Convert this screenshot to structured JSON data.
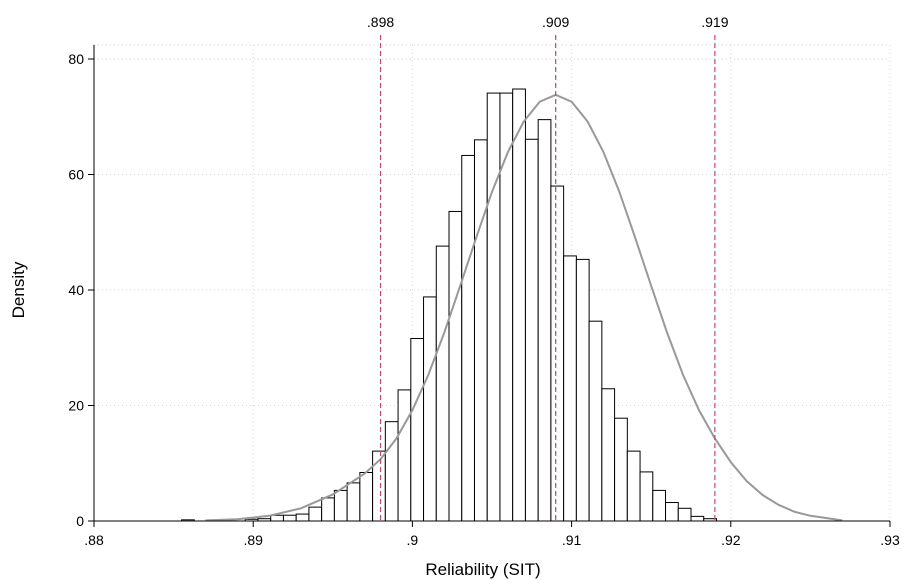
{
  "chart_data": {
    "type": "bar",
    "subtype": "histogram with kernel density overlay",
    "xlabel": "Reliability (SIT)",
    "ylabel": "Density",
    "xlim": [
      0.88,
      0.93
    ],
    "ylim": [
      0,
      80
    ],
    "xticks": [
      0.88,
      0.89,
      0.9,
      0.91,
      0.92,
      0.93
    ],
    "xtick_labels": [
      ".88",
      ".89",
      ".9",
      ".91",
      ".92",
      ".93"
    ],
    "yticks": [
      0,
      20,
      40,
      60,
      80
    ],
    "ytick_labels": [
      "0",
      "20",
      "40",
      "60",
      "80"
    ],
    "grid": true,
    "bin_width": 0.0008,
    "bins": [
      {
        "start": 0.8855,
        "end": 0.8863,
        "density": 0.2
      },
      {
        "start": 0.8895,
        "end": 0.8903,
        "density": 0.3
      },
      {
        "start": 0.8903,
        "end": 0.8911,
        "density": 0.4
      },
      {
        "start": 0.8911,
        "end": 0.8919,
        "density": 1.0
      },
      {
        "start": 0.8919,
        "end": 0.8927,
        "density": 1.0
      },
      {
        "start": 0.8927,
        "end": 0.8935,
        "density": 1.2
      },
      {
        "start": 0.8935,
        "end": 0.8943,
        "density": 2.4
      },
      {
        "start": 0.8943,
        "end": 0.8951,
        "density": 4.0
      },
      {
        "start": 0.8951,
        "end": 0.8959,
        "density": 5.3
      },
      {
        "start": 0.8959,
        "end": 0.8967,
        "density": 6.6
      },
      {
        "start": 0.8967,
        "end": 0.8975,
        "density": 8.4
      },
      {
        "start": 0.8975,
        "end": 0.8983,
        "density": 12.1
      },
      {
        "start": 0.8983,
        "end": 0.8991,
        "density": 17.2
      },
      {
        "start": 0.8991,
        "end": 0.8999,
        "density": 22.7
      },
      {
        "start": 0.8999,
        "end": 0.9007,
        "density": 31.6
      },
      {
        "start": 0.9007,
        "end": 0.9015,
        "density": 38.8
      },
      {
        "start": 0.9015,
        "end": 0.9023,
        "density": 47.6
      },
      {
        "start": 0.9023,
        "end": 0.9031,
        "density": 53.6
      },
      {
        "start": 0.9031,
        "end": 0.9039,
        "density": 63.3
      },
      {
        "start": 0.9039,
        "end": 0.9047,
        "density": 66.0
      },
      {
        "start": 0.9047,
        "end": 0.9055,
        "density": 74.1
      },
      {
        "start": 0.9055,
        "end": 0.9063,
        "density": 74.1
      },
      {
        "start": 0.9063,
        "end": 0.9071,
        "density": 74.8
      },
      {
        "start": 0.9071,
        "end": 0.9079,
        "density": 66.1
      },
      {
        "start": 0.9079,
        "end": 0.9087,
        "density": 69.5
      },
      {
        "start": 0.9087,
        "end": 0.9095,
        "density": 58.0
      },
      {
        "start": 0.9095,
        "end": 0.9103,
        "density": 45.9
      },
      {
        "start": 0.9103,
        "end": 0.9111,
        "density": 45.3
      },
      {
        "start": 0.9111,
        "end": 0.9119,
        "density": 34.6
      },
      {
        "start": 0.9119,
        "end": 0.9127,
        "density": 22.9
      },
      {
        "start": 0.9127,
        "end": 0.9135,
        "density": 17.8
      },
      {
        "start": 0.9135,
        "end": 0.9143,
        "density": 12.1
      },
      {
        "start": 0.9143,
        "end": 0.9151,
        "density": 8.5
      },
      {
        "start": 0.9151,
        "end": 0.9159,
        "density": 5.3
      },
      {
        "start": 0.9159,
        "end": 0.9167,
        "density": 3.2
      },
      {
        "start": 0.9167,
        "end": 0.9175,
        "density": 2.2
      },
      {
        "start": 0.9175,
        "end": 0.9183,
        "density": 0.8
      },
      {
        "start": 0.9183,
        "end": 0.9191,
        "density": 0.4
      }
    ],
    "density_curve": {
      "x": [
        0.887,
        0.889,
        0.891,
        0.893,
        0.895,
        0.897,
        0.898,
        0.899,
        0.9,
        0.901,
        0.902,
        0.903,
        0.904,
        0.905,
        0.906,
        0.907,
        0.908,
        0.909,
        0.91,
        0.911,
        0.912,
        0.913,
        0.914,
        0.915,
        0.916,
        0.917,
        0.918,
        0.919,
        0.92,
        0.921,
        0.922,
        0.923,
        0.924,
        0.925,
        0.927
      ],
      "y": [
        0.1,
        0.3,
        0.9,
        2.2,
        4.6,
        8.2,
        10.7,
        14.3,
        19.2,
        25.3,
        32.6,
        40.7,
        49.0,
        57.0,
        63.9,
        69.2,
        72.6,
        73.8,
        72.6,
        69.2,
        63.9,
        57.0,
        49.0,
        40.7,
        32.6,
        25.3,
        19.2,
        14.3,
        10.2,
        6.9,
        4.5,
        2.8,
        1.6,
        0.9,
        0.1
      ]
    },
    "reference_lines": [
      {
        "x": 0.898,
        "label": ".898"
      },
      {
        "x": 0.909,
        "label": ".909"
      },
      {
        "x": 0.919,
        "label": ".919"
      }
    ],
    "colors": {
      "bar_fill": "#ffffff",
      "bar_edge": "#000000",
      "density_line": "#999999",
      "reference_line": "#c7476b",
      "grid": "#d6d6d6"
    }
  }
}
